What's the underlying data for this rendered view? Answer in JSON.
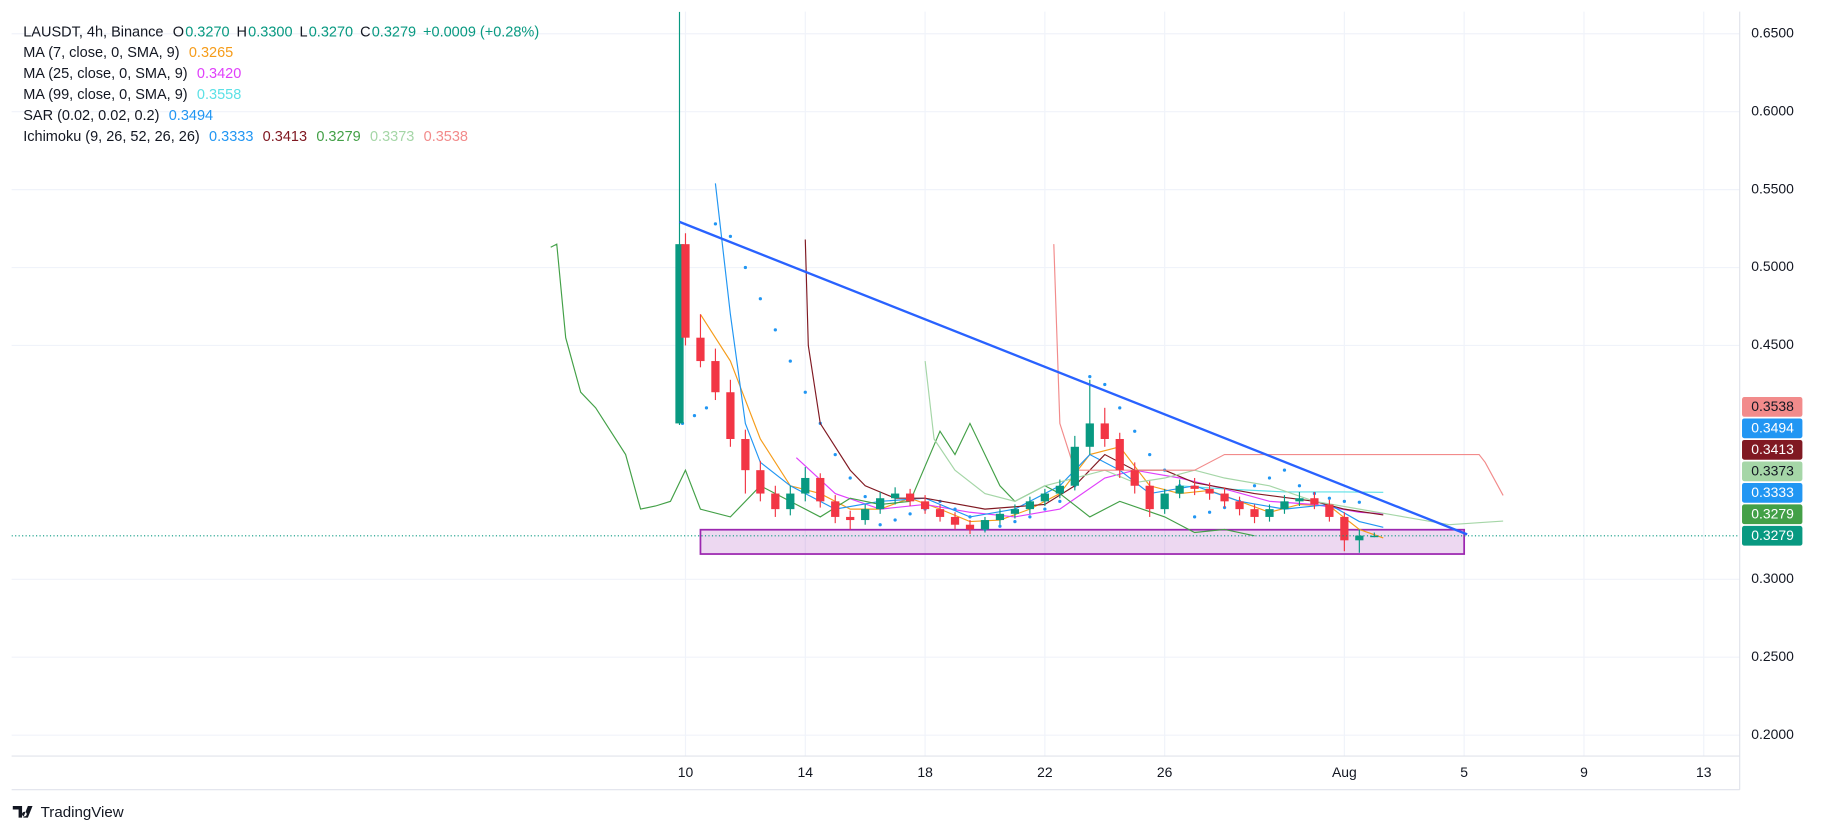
{
  "chart_data": {
    "type": "candlestick",
    "symbol": "LAUSDT, 4h, Binance",
    "ohlc": [
      {
        "key": "O",
        "text": "0.3270"
      },
      {
        "key": "H",
        "text": "0.3300"
      },
      {
        "key": "L",
        "text": "0.3270"
      },
      {
        "key": "C",
        "text": "0.3279"
      }
    ],
    "change": "+0.0009 (+0.28%)",
    "up_color": "#089981",
    "down_color": "#f23645",
    "x": [
      9.8,
      10,
      10.5,
      11,
      11.5,
      12,
      12.5,
      13,
      13.5,
      14,
      14.5,
      15,
      15.5,
      16,
      16.5,
      17,
      17.5,
      18,
      18.5,
      19,
      19.5,
      20,
      20.5,
      21,
      21.5,
      22,
      22.5,
      23,
      23.5,
      24,
      24.5,
      25,
      25.5,
      26,
      26.5,
      27,
      27.5,
      28,
      28.5,
      29,
      29.5,
      30,
      30.5,
      31,
      31.5,
      32,
      32.5,
      33
    ],
    "open": [
      0.4,
      0.515,
      0.455,
      0.44,
      0.42,
      0.39,
      0.37,
      0.355,
      0.345,
      0.355,
      0.365,
      0.35,
      0.34,
      0.338,
      0.345,
      0.352,
      0.355,
      0.35,
      0.345,
      0.34,
      0.335,
      0.332,
      0.338,
      0.342,
      0.345,
      0.35,
      0.355,
      0.36,
      0.385,
      0.4,
      0.39,
      0.37,
      0.36,
      0.345,
      0.355,
      0.36,
      0.358,
      0.355,
      0.35,
      0.345,
      0.34,
      0.345,
      0.35,
      0.352,
      0.348,
      0.34,
      0.325,
      0.327
    ],
    "high": [
      0.664,
      0.522,
      0.47,
      0.448,
      0.428,
      0.396,
      0.376,
      0.36,
      0.36,
      0.372,
      0.368,
      0.354,
      0.344,
      0.348,
      0.356,
      0.359,
      0.358,
      0.354,
      0.348,
      0.343,
      0.338,
      0.34,
      0.345,
      0.348,
      0.353,
      0.358,
      0.364,
      0.392,
      0.428,
      0.41,
      0.394,
      0.375,
      0.363,
      0.358,
      0.364,
      0.365,
      0.362,
      0.359,
      0.353,
      0.348,
      0.348,
      0.354,
      0.356,
      0.356,
      0.351,
      0.343,
      0.332,
      0.33
    ],
    "low": [
      0.399,
      0.45,
      0.436,
      0.415,
      0.385,
      0.355,
      0.35,
      0.34,
      0.341,
      0.35,
      0.346,
      0.336,
      0.332,
      0.335,
      0.342,
      0.348,
      0.347,
      0.342,
      0.337,
      0.332,
      0.329,
      0.33,
      0.335,
      0.339,
      0.342,
      0.347,
      0.352,
      0.357,
      0.38,
      0.385,
      0.365,
      0.355,
      0.34,
      0.342,
      0.352,
      0.354,
      0.351,
      0.346,
      0.341,
      0.336,
      0.337,
      0.342,
      0.347,
      0.345,
      0.337,
      0.318,
      0.317,
      0.327
    ],
    "close": [
      0.515,
      0.455,
      0.44,
      0.42,
      0.39,
      0.37,
      0.355,
      0.345,
      0.355,
      0.365,
      0.35,
      0.34,
      0.338,
      0.345,
      0.352,
      0.355,
      0.35,
      0.345,
      0.34,
      0.335,
      0.332,
      0.338,
      0.342,
      0.345,
      0.35,
      0.355,
      0.36,
      0.385,
      0.4,
      0.39,
      0.37,
      0.36,
      0.345,
      0.355,
      0.36,
      0.358,
      0.355,
      0.35,
      0.345,
      0.34,
      0.345,
      0.35,
      0.352,
      0.348,
      0.34,
      0.325,
      0.328,
      0.3279
    ],
    "indicators": [
      {
        "name": "MA (7, close, 0, SMA, 9)",
        "lines": [
          {
            "color": "#f59c1a",
            "label": "0.3265",
            "x": [
              10.5,
              11.5,
              12.5,
              13.5,
              14.5,
              15.5,
              16.5,
              17.5,
              18.5,
              19.5,
              20.5,
              21.5,
              22.5,
              23.5,
              24.5,
              25.5,
              26.5,
              27.5,
              28.5,
              29.5,
              30.5,
              31.5,
              32.5,
              33.3
            ],
            "values": [
              0.47,
              0.44,
              0.39,
              0.36,
              0.355,
              0.345,
              0.345,
              0.352,
              0.345,
              0.337,
              0.338,
              0.345,
              0.355,
              0.38,
              0.385,
              0.36,
              0.355,
              0.357,
              0.35,
              0.343,
              0.348,
              0.347,
              0.332,
              0.3265
            ]
          }
        ]
      },
      {
        "name": "MA (25, close, 0, SMA, 9)",
        "lines": [
          {
            "color": "#e040fb",
            "label": "0.3420",
            "x": [
              13.7,
              15,
              16.5,
              18,
              19.5,
              21,
              22.5,
              24,
              25,
              26.5,
              28,
              29.5,
              31,
              32.5,
              33.3
            ],
            "values": [
              0.378,
              0.355,
              0.345,
              0.348,
              0.343,
              0.34,
              0.345,
              0.365,
              0.37,
              0.365,
              0.358,
              0.35,
              0.348,
              0.343,
              0.342
            ]
          }
        ]
      },
      {
        "name": "MA (99, close, 0, SMA, 9)",
        "lines": [
          {
            "color": "#5ce1e6",
            "label": "0.3558",
            "x": [
              26.5,
              28,
              30,
              32,
              33.3
            ],
            "values": [
              0.36,
              0.358,
              0.356,
              0.356,
              0.3558
            ]
          }
        ]
      },
      {
        "name": "SAR (0.02, 0.02, 0.2)",
        "style": "dots",
        "lines": [
          {
            "color": "#2196f3",
            "label": "0.3494",
            "axis_label": true,
            "x": [
              9.9,
              10.3,
              10.7,
              11,
              11.5,
              12,
              12.5,
              13,
              13.5,
              14,
              14.5,
              15,
              15.5,
              16,
              16.5,
              17,
              17.5,
              18,
              18.5,
              19,
              19.5,
              20,
              20.5,
              21,
              21.5,
              22,
              22.5,
              23,
              23.5,
              24,
              24.5,
              25,
              25.5,
              26,
              26.5,
              27,
              27.5,
              28,
              28.5,
              29,
              29.5,
              30,
              30.5,
              31,
              31.5,
              32,
              32.5
            ],
            "values": [
              0.4,
              0.405,
              0.41,
              0.528,
              0.52,
              0.5,
              0.48,
              0.46,
              0.44,
              0.42,
              0.4,
              0.38,
              0.365,
              0.353,
              0.335,
              0.338,
              0.342,
              0.345,
              0.35,
              0.345,
              0.34,
              0.332,
              0.334,
              0.337,
              0.34,
              0.345,
              0.35,
              0.36,
              0.43,
              0.425,
              0.41,
              0.395,
              0.38,
              0.37,
              0.36,
              0.34,
              0.343,
              0.346,
              0.35,
              0.36,
              0.365,
              0.37,
              0.36,
              0.355,
              0.352,
              0.35,
              0.3494
            ]
          }
        ]
      },
      {
        "name": "Ichimoku (9, 26, 52, 26, 26)",
        "lines": [
          {
            "color": "#2196f3",
            "label": "0.3333",
            "axis_label": true,
            "x": [
              11,
              11.5,
              12,
              12.5,
              13.5,
              15,
              16.5,
              18,
              19.5,
              21,
              22.5,
              23.5,
              24.5,
              25.5,
              27,
              28.5,
              30,
              31.5,
              32.5,
              33.3
            ],
            "values": [
              0.554,
              0.47,
              0.4,
              0.375,
              0.36,
              0.345,
              0.35,
              0.352,
              0.34,
              0.345,
              0.36,
              0.38,
              0.37,
              0.355,
              0.36,
              0.35,
              0.345,
              0.348,
              0.337,
              0.3333
            ]
          },
          {
            "color": "#801922",
            "label": "0.3413",
            "axis_label": true,
            "x": [
              14,
              14.1,
              14.5,
              15.5,
              16,
              17,
              18,
              20,
              22,
              23,
              24,
              25,
              26,
              27,
              29,
              31,
              32,
              33.3
            ],
            "values": [
              0.518,
              0.45,
              0.4,
              0.37,
              0.36,
              0.352,
              0.352,
              0.345,
              0.348,
              0.36,
              0.38,
              0.37,
              0.37,
              0.362,
              0.355,
              0.35,
              0.345,
              0.3413
            ]
          },
          {
            "color": "#43a047",
            "label": "0.3279",
            "axis_label": true,
            "x": [
              5.5,
              5.7,
              6,
              6.5,
              7,
              7.5,
              8,
              8.5,
              9,
              9.5,
              10,
              10.5,
              11.5,
              12.5,
              13.5,
              14.5,
              15.5,
              16.5,
              17.5,
              18.5,
              19,
              19.5,
              20.5,
              21,
              22,
              22.5,
              23.5,
              24.5,
              26,
              27,
              28,
              29
            ],
            "values": [
              0.513,
              0.515,
              0.455,
              0.42,
              0.41,
              0.395,
              0.38,
              0.345,
              0.347,
              0.35,
              0.37,
              0.345,
              0.34,
              0.36,
              0.35,
              0.34,
              0.352,
              0.348,
              0.35,
              0.395,
              0.38,
              0.4,
              0.36,
              0.35,
              0.36,
              0.355,
              0.34,
              0.35,
              0.34,
              0.33,
              0.332,
              0.3279
            ]
          },
          {
            "color": "#a5d6a7",
            "label": "0.3373",
            "axis_label": true,
            "x": [
              18,
              18.3,
              19,
              20,
              21,
              22,
              23,
              24,
              25,
              26,
              27,
              28,
              29.5,
              31,
              32.5,
              34,
              35.5,
              37.3
            ],
            "values": [
              0.44,
              0.39,
              0.37,
              0.355,
              0.35,
              0.36,
              0.365,
              0.37,
              0.362,
              0.365,
              0.37,
              0.365,
              0.36,
              0.35,
              0.345,
              0.34,
              0.335,
              0.3373
            ]
          },
          {
            "color": "#f28b8b",
            "label": "0.3538",
            "axis_label": true,
            "x": [
              22.3,
              22.5,
              23,
              24,
              25,
              27,
              28,
              29,
              31,
              33,
              35,
              36.5,
              36.7,
              37.3
            ],
            "values": [
              0.515,
              0.4,
              0.37,
              0.37,
              0.37,
              0.37,
              0.38,
              0.38,
              0.38,
              0.38,
              0.38,
              0.38,
              0.375,
              0.3538
            ]
          }
        ]
      }
    ],
    "trendline": {
      "color": "#2962ff",
      "x": [
        9.8,
        36.1
      ],
      "values": [
        0.5293,
        0.3288
      ]
    },
    "rectangle": {
      "color": "#9c27b0",
      "x": [
        10.5,
        36
      ],
      "values": [
        0.3318,
        0.3162
      ]
    },
    "xlim": [
      -12.5,
      45.2
    ],
    "ylim": [
      0.1866,
      0.6642
    ],
    "xticks": [
      10,
      14,
      18,
      22,
      26,
      {
        "value": 32,
        "label": "Aug"
      },
      {
        "value": 36,
        "label": "5"
      },
      {
        "value": 40,
        "label": "9"
      },
      {
        "value": 44,
        "label": "13"
      }
    ],
    "yticks": [
      {
        "value": 0.65,
        "label": "0.6500"
      },
      {
        "value": 0.6,
        "label": "0.6000"
      },
      {
        "value": 0.55,
        "label": "0.5500"
      },
      {
        "value": 0.5,
        "label": "0.5000"
      },
      {
        "value": 0.45,
        "label": "0.4500"
      },
      {
        "value": 0.3,
        "label": "0.3000"
      },
      {
        "value": 0.25,
        "label": "0.2500"
      },
      {
        "value": 0.2,
        "label": "0.2000"
      }
    ],
    "grid": true,
    "brand": "TradingView"
  }
}
